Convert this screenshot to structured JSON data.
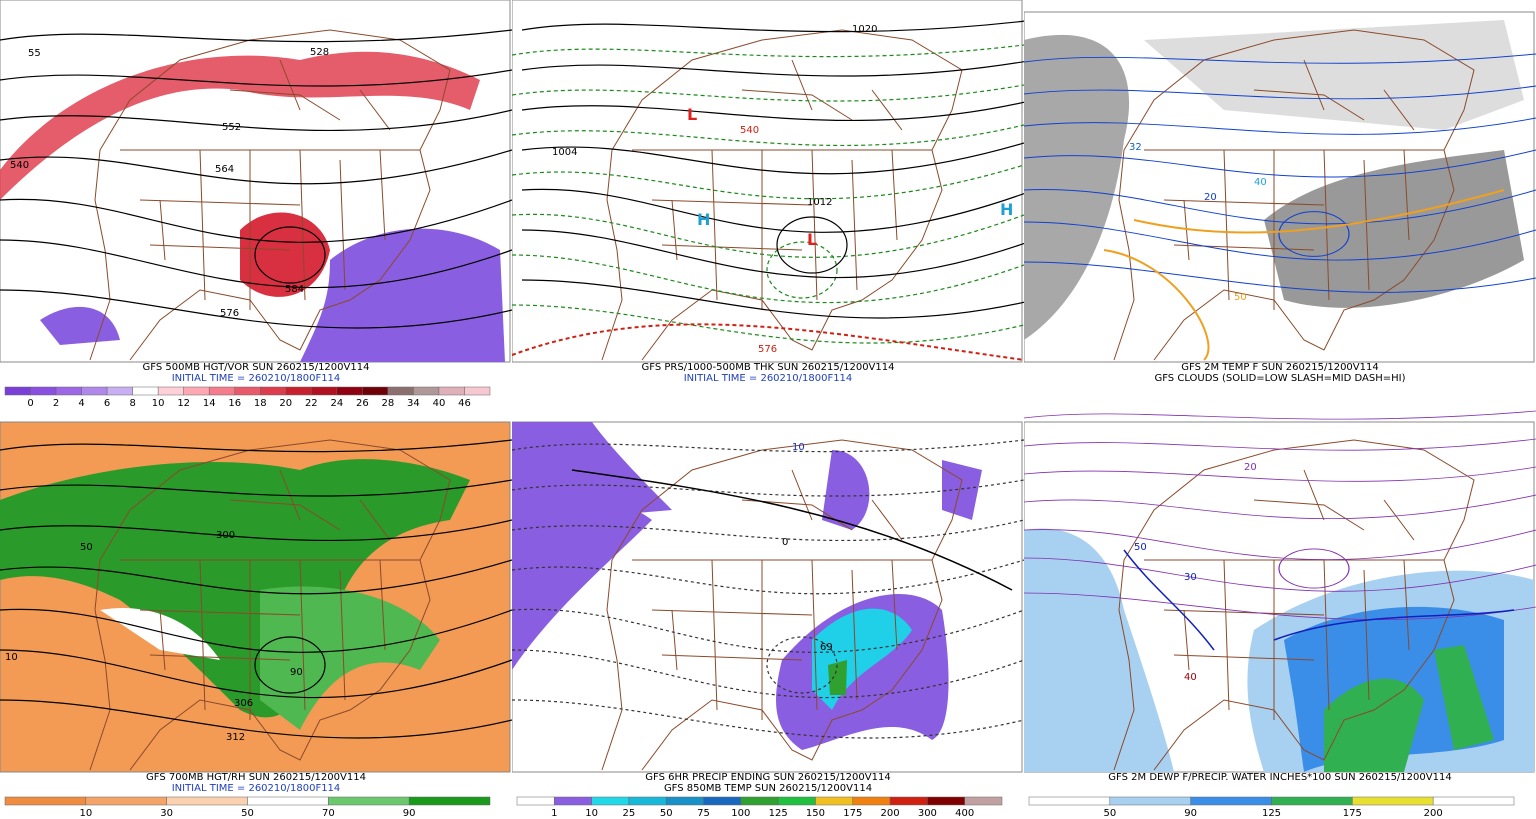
{
  "panels": [
    {
      "caption": [
        "GFS 500MB HGT/VOR SUN 260215/1200V114",
        "INITIAL TIME = 260210/1800F114"
      ],
      "caption_colors": [
        "#000000",
        "#1f3fbf"
      ],
      "colorbar": {
        "labels": [
          "0",
          "2",
          "4",
          "6",
          "8",
          "10",
          "12",
          "14",
          "16",
          "18",
          "20",
          "22",
          "24",
          "26",
          "28",
          "34",
          "40",
          "46"
        ],
        "colors": [
          "#7a3fd8",
          "#8a4fe0",
          "#9d66e6",
          "#b088ec",
          "#c8aef2",
          "#ffffff",
          "#ffd0d8",
          "#ffa8b4",
          "#f47c8c",
          "#e85a6a",
          "#dc3c4c",
          "#c8202e",
          "#b01020",
          "#900010",
          "#700008",
          "#8c7070",
          "#b09898",
          "#e0b0b8",
          "#f8c8d0"
        ]
      },
      "map_labels": [
        "552",
        "564",
        "576",
        "528",
        "584",
        "540",
        "55"
      ]
    },
    {
      "caption": [
        "GFS PRS/1000-500MB THK SUN 260215/1200V114",
        "INITIAL TIME = 260210/1800F114"
      ],
      "caption_colors": [
        "#000000",
        "#1f3fbf"
      ],
      "map_labels": [
        "H",
        "L",
        "1020",
        "1012",
        "540",
        "576",
        "1004"
      ]
    },
    {
      "caption": [
        "GFS 2M TEMP F SUN 260215/1200V114",
        "GFS CLOUDS (SOLID=LOW SLASH=MID DASH=HI)"
      ],
      "caption_colors": [
        "#000000",
        "#000000"
      ],
      "map_labels": [
        "32",
        "40",
        "50",
        "20"
      ]
    },
    {
      "caption": [
        "GFS 700MB HGT/RH SUN 260215/1200V114",
        "INITIAL TIME = 260210/1800F114"
      ],
      "caption_colors": [
        "#000000",
        "#1f3fbf"
      ],
      "colorbar": {
        "labels": [
          "10",
          "30",
          "50",
          "70",
          "90"
        ],
        "colors": [
          "#f08c40",
          "#f4a466",
          "#fbd2b0",
          "#ffffff",
          "#6cc86c",
          "#1a9a1a"
        ]
      },
      "map_labels": [
        "306",
        "312",
        "300",
        "90",
        "50",
        "10"
      ]
    },
    {
      "caption": [
        "GFS 6HR PRECIP ENDING SUN 260215/1200V114",
        "GFS 850MB TEMP SUN 260215/1200V114"
      ],
      "caption_colors": [
        "#000000",
        "#000000"
      ],
      "colorbar": {
        "labels": [
          "1",
          "10",
          "25",
          "50",
          "75",
          "100",
          "125",
          "150",
          "175",
          "200",
          "300",
          "400"
        ],
        "colors": [
          "#ffffff",
          "#8a5ee0",
          "#20d8e8",
          "#18b8d8",
          "#1890c8",
          "#1868c0",
          "#30a030",
          "#20c040",
          "#f0c020",
          "#f08010",
          "#d02010",
          "#800000",
          "#c0a0a0"
        ]
      },
      "map_labels": [
        "0",
        "10",
        "69"
      ]
    },
    {
      "caption": [
        "GFS 2M DEWP F/PRECIP. WATER INCHES*100 SUN 260215/1200V114"
      ],
      "caption_colors": [
        "#000000"
      ],
      "colorbar": {
        "labels": [
          "50",
          "90",
          "125",
          "175",
          "200"
        ],
        "colors": [
          "#ffffff",
          "#a8d0f0",
          "#3a8ee8",
          "#30b050",
          "#e8e030",
          "#ffffff"
        ]
      },
      "map_labels": [
        "40",
        "30",
        "50",
        "20"
      ]
    }
  ]
}
